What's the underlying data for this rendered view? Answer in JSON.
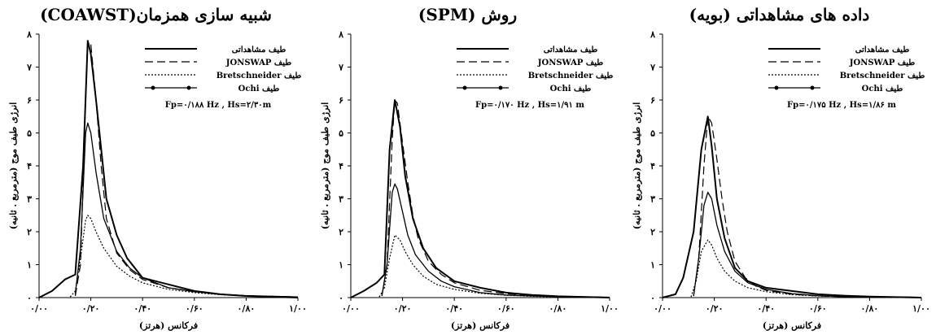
{
  "chart_data": [
    {
      "type": "line",
      "title": "شبیه سازی همزمان(COAWST)",
      "xlabel": "فرکانس (هرتز)",
      "ylabel": "انرژی طیف موج (مترمربع . ثانیه)",
      "xlim": [
        0,
        1
      ],
      "ylim": [
        0,
        8
      ],
      "x_ticks": [
        "۰/۰۰",
        "۰/۲۰",
        "۰/۴۰",
        "۰/۶۰",
        "۰/۸۰",
        "۱/۰۰"
      ],
      "y_ticks": [
        "۰",
        "۱",
        "۲",
        "۳",
        "۴",
        "۵",
        "۶",
        "۷",
        "۸"
      ],
      "annotation": "Fp=۰/۱۸۸ Hz ,  Hs=۲/۳۰m",
      "legend": [
        "طیف مشاهداتی",
        "طیف JONSWAP",
        "طیف Bretschneider",
        "طیف Ochi"
      ],
      "series": [
        {
          "name": "طیف مشاهداتی",
          "style": "solid",
          "x": [
            0,
            0.05,
            0.1,
            0.14,
            0.17,
            0.188,
            0.2,
            0.22,
            0.26,
            0.3,
            0.34,
            0.4,
            0.5,
            0.6,
            0.7,
            0.8,
            1.0
          ],
          "y": [
            0,
            0.2,
            0.55,
            0.7,
            4.0,
            7.8,
            7.4,
            6.0,
            3.0,
            1.9,
            1.2,
            0.6,
            0.4,
            0.2,
            0.1,
            0.05,
            0
          ]
        },
        {
          "name": "طیف JONSWAP",
          "style": "dashed",
          "x": [
            0.14,
            0.16,
            0.18,
            0.188,
            0.2,
            0.22,
            0.24,
            0.26,
            0.3,
            0.35,
            0.4,
            0.5,
            0.6,
            0.7,
            0.8,
            1.0
          ],
          "y": [
            0.05,
            1.0,
            6.0,
            7.7,
            7.7,
            6.0,
            4.0,
            2.4,
            1.35,
            0.85,
            0.55,
            0.3,
            0.18,
            0.1,
            0.06,
            0.02
          ]
        },
        {
          "name": "طیف Bretschneider",
          "style": "dotted",
          "x": [
            0.12,
            0.14,
            0.16,
            0.18,
            0.188,
            0.2,
            0.22,
            0.25,
            0.3,
            0.35,
            0.4,
            0.5,
            0.6,
            0.7,
            0.8,
            1.0
          ],
          "y": [
            0.02,
            0.2,
            1.2,
            2.35,
            2.5,
            2.4,
            2.0,
            1.5,
            0.95,
            0.65,
            0.45,
            0.25,
            0.15,
            0.09,
            0.05,
            0.02
          ]
        },
        {
          "name": "طیف Ochi",
          "style": "solid-marker",
          "x": [
            0.14,
            0.16,
            0.18,
            0.188,
            0.2,
            0.22,
            0.25,
            0.3,
            0.35,
            0.4,
            0.5,
            0.6,
            0.7,
            0.8,
            1.0
          ],
          "y": [
            0.1,
            1.5,
            5.0,
            5.3,
            5.0,
            3.8,
            2.4,
            1.4,
            0.9,
            0.6,
            0.3,
            0.18,
            0.1,
            0.06,
            0.02
          ]
        }
      ]
    },
    {
      "type": "line",
      "title": "روش (SPM)",
      "xlabel": "فرکانس (هرتز)",
      "ylabel": "انرژی طیف موج (مترمربع . ثانیه)",
      "xlim": [
        0,
        1
      ],
      "ylim": [
        0,
        8
      ],
      "x_ticks": [
        "۰/۰۰",
        "۰/۲۰",
        "۰/۴۰",
        "۰/۶۰",
        "۰/۸۰",
        "۱/۰۰"
      ],
      "y_ticks": [
        "۰",
        "۱",
        "۲",
        "۳",
        "۴",
        "۵",
        "۶",
        "۷",
        "۸"
      ],
      "annotation": "Fp=۰/۱۷۰ Hz ,  Hs=۱/۹۱ m",
      "legend": [
        "طیف مشاهداتی",
        "طیف JONSWAP",
        "طیف Bretschneider",
        "طیف Ochi"
      ],
      "series": [
        {
          "name": "طیف مشاهداتی",
          "style": "solid",
          "x": [
            0,
            0.05,
            0.1,
            0.13,
            0.15,
            0.17,
            0.19,
            0.21,
            0.24,
            0.28,
            0.33,
            0.4,
            0.5,
            0.6,
            0.7,
            0.8,
            1.0
          ],
          "y": [
            0,
            0.2,
            0.45,
            0.7,
            4.5,
            6.0,
            5.2,
            3.7,
            2.4,
            1.5,
            0.9,
            0.5,
            0.3,
            0.15,
            0.08,
            0.04,
            0
          ]
        },
        {
          "name": "طیف JONSWAP",
          "style": "dashed",
          "x": [
            0.12,
            0.14,
            0.16,
            0.17,
            0.18,
            0.2,
            0.22,
            0.24,
            0.26,
            0.3,
            0.35,
            0.4,
            0.5,
            0.6,
            0.7,
            0.8,
            1.0
          ],
          "y": [
            0.05,
            1.0,
            4.8,
            6.0,
            5.9,
            4.7,
            3.5,
            2.5,
            1.8,
            1.1,
            0.7,
            0.45,
            0.22,
            0.12,
            0.07,
            0.04,
            0.01
          ]
        },
        {
          "name": "طیف Bretschneider",
          "style": "dotted",
          "x": [
            0.11,
            0.13,
            0.15,
            0.17,
            0.19,
            0.21,
            0.24,
            0.28,
            0.33,
            0.4,
            0.5,
            0.6,
            0.7,
            0.8,
            1.0
          ],
          "y": [
            0.02,
            0.3,
            1.2,
            1.9,
            1.75,
            1.4,
            1.0,
            0.65,
            0.4,
            0.25,
            0.13,
            0.07,
            0.04,
            0.02,
            0.01
          ]
        },
        {
          "name": "طیف Ochi",
          "style": "solid-marker",
          "x": [
            0.12,
            0.14,
            0.16,
            0.17,
            0.18,
            0.2,
            0.22,
            0.25,
            0.3,
            0.35,
            0.4,
            0.5,
            0.6,
            0.7,
            0.8,
            1.0
          ],
          "y": [
            0.05,
            1.0,
            3.2,
            3.45,
            3.3,
            2.6,
            1.9,
            1.3,
            0.8,
            0.5,
            0.33,
            0.15,
            0.08,
            0.05,
            0.03,
            0.01
          ]
        }
      ]
    },
    {
      "type": "line",
      "title": "داده های مشاهداتی (بویه)",
      "xlabel": "فرکانس (هرتز)",
      "ylabel": "انرژی طیف موج (مترمربع . ثانیه)",
      "xlim": [
        0,
        1
      ],
      "ylim": [
        0,
        8
      ],
      "x_ticks": [
        "۰/۰۰",
        "۰/۲۰",
        "۰/۴۰",
        "۰/۶۰",
        "۰/۸۰",
        "۱/۰۰"
      ],
      "y_ticks": [
        "۰",
        "۱",
        "۲",
        "۳",
        "۴",
        "۵",
        "۶",
        "۷",
        "۸"
      ],
      "annotation": "Fp=۰/۱۷۵ Hz ,  Hs=۱/۸۶ m",
      "legend": [
        "طیف مشاهداتی",
        "طیف JONSWAP",
        "طیف Bretschneider",
        "طیف Ochi"
      ],
      "series": [
        {
          "name": "طیف مشاهداتی",
          "style": "solid",
          "x": [
            0,
            0.05,
            0.08,
            0.12,
            0.15,
            0.175,
            0.19,
            0.21,
            0.24,
            0.28,
            0.33,
            0.4,
            0.5,
            0.6,
            0.7,
            0.8,
            1.0
          ],
          "y": [
            0,
            0.1,
            0.6,
            2.0,
            4.5,
            5.5,
            4.6,
            3.0,
            1.8,
            0.9,
            0.5,
            0.3,
            0.2,
            0.1,
            0.06,
            0.03,
            0
          ]
        },
        {
          "name": "طیف JONSWAP",
          "style": "dashed",
          "x": [
            0.12,
            0.14,
            0.16,
            0.175,
            0.19,
            0.21,
            0.23,
            0.25,
            0.28,
            0.32,
            0.36,
            0.4,
            0.5,
            0.6,
            0.7,
            0.8,
            1.0
          ],
          "y": [
            0.05,
            1.2,
            4.0,
            5.5,
            5.3,
            4.2,
            3.0,
            2.0,
            1.1,
            0.6,
            0.35,
            0.22,
            0.1,
            0.05,
            0.03,
            0.02,
            0.01
          ]
        },
        {
          "name": "طیف Bretschneider",
          "style": "dotted",
          "x": [
            0.11,
            0.13,
            0.15,
            0.175,
            0.19,
            0.21,
            0.24,
            0.28,
            0.33,
            0.4,
            0.5,
            0.6,
            0.7,
            0.8,
            1.0
          ],
          "y": [
            0.02,
            0.5,
            1.4,
            1.75,
            1.6,
            1.2,
            0.8,
            0.5,
            0.3,
            0.18,
            0.09,
            0.05,
            0.03,
            0.02,
            0.01
          ]
        },
        {
          "name": "طیف Ochi",
          "style": "solid-marker",
          "x": [
            0.12,
            0.14,
            0.16,
            0.175,
            0.19,
            0.21,
            0.24,
            0.28,
            0.33,
            0.4,
            0.5,
            0.6,
            0.7,
            0.8,
            1.0
          ],
          "y": [
            0.05,
            1.2,
            2.8,
            3.2,
            3.0,
            2.2,
            1.4,
            0.8,
            0.45,
            0.25,
            0.12,
            0.06,
            0.03,
            0.02,
            0.01
          ]
        }
      ]
    }
  ]
}
